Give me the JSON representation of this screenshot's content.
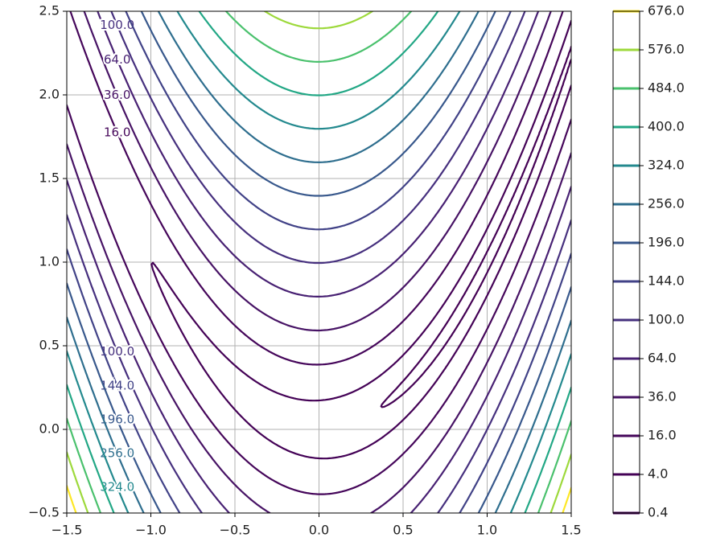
{
  "chart_data": {
    "type": "contour",
    "levels": [
      {
        "value": 0.4,
        "label": "0.4"
      },
      {
        "value": 4,
        "label": "4.0"
      },
      {
        "value": 16,
        "label": "16.0"
      },
      {
        "value": 36,
        "label": "36.0"
      },
      {
        "value": 64,
        "label": "64.0"
      },
      {
        "value": 100,
        "label": "100.0"
      },
      {
        "value": 144,
        "label": "144.0"
      },
      {
        "value": 196,
        "label": "196.0"
      },
      {
        "value": 256,
        "label": "256.0"
      },
      {
        "value": 324,
        "label": "324.0"
      },
      {
        "value": 400,
        "label": "400.0"
      },
      {
        "value": 484,
        "label": "484.0"
      },
      {
        "value": 576,
        "label": "576.0"
      },
      {
        "value": 676,
        "label": "676.0"
      }
    ],
    "colors": [
      "#440154",
      "#440256",
      "#45065a",
      "#471365",
      "#482173",
      "#46307e",
      "#414287",
      "#38588c",
      "#2e6e8e",
      "#23898e",
      "#22a785",
      "#4ac16d",
      "#9dd93b",
      "#fde725"
    ],
    "xlim": [
      -1.5,
      1.5
    ],
    "ylim": [
      -0.5,
      2.5
    ],
    "xticks": [
      {
        "value": -1.5,
        "label": "−1.5"
      },
      {
        "value": -1.0,
        "label": "−1.0"
      },
      {
        "value": -0.5,
        "label": "−0.5"
      },
      {
        "value": 0.0,
        "label": "0.0"
      },
      {
        "value": 0.5,
        "label": "0.5"
      },
      {
        "value": 1.0,
        "label": "1.0"
      },
      {
        "value": 1.5,
        "label": "1.5"
      }
    ],
    "yticks": [
      {
        "value": -0.5,
        "label": "−0.5"
      },
      {
        "value": 0.0,
        "label": "0.0"
      },
      {
        "value": 0.5,
        "label": "0.5"
      },
      {
        "value": 1.0,
        "label": "1.0"
      },
      {
        "value": 1.5,
        "label": "1.5"
      },
      {
        "value": 2.0,
        "label": "2.0"
      },
      {
        "value": 2.5,
        "label": "2.5"
      }
    ],
    "grid": true
  }
}
